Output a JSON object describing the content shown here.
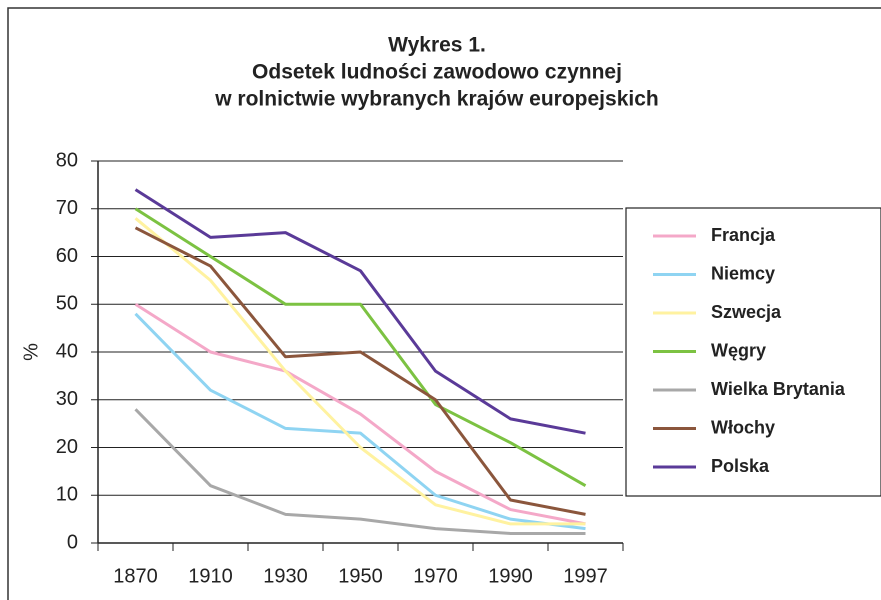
{
  "chart_data": {
    "type": "line",
    "title": [
      "Wykres 1.",
      "Odsetek ludności zawodowo czynnej",
      "w rolnictwie wybranych krajów europejskich"
    ],
    "y_label": "%",
    "categories": [
      "1870",
      "1910",
      "1930",
      "1950",
      "1970",
      "1990",
      "1997"
    ],
    "series": [
      {
        "name": "Francja",
        "color": "#f4a8c8",
        "values": [
          50,
          40,
          36,
          27,
          15,
          7,
          4
        ]
      },
      {
        "name": "Niemcy",
        "color": "#8fd4f2",
        "values": [
          48,
          32,
          24,
          23,
          10,
          5,
          3
        ]
      },
      {
        "name": "Szwecja",
        "color": "#fff2a0",
        "values": [
          68,
          55,
          36,
          20,
          8,
          4,
          4
        ]
      },
      {
        "name": "Węgry",
        "color": "#7cc242",
        "values": [
          70,
          60,
          50,
          50,
          29,
          21,
          12
        ]
      },
      {
        "name": "Wielka Brytania",
        "color": "#a8a8a8",
        "values": [
          28,
          12,
          6,
          5,
          3,
          2,
          2
        ]
      },
      {
        "name": "Włochy",
        "color": "#8b563c",
        "values": [
          66,
          58,
          39,
          40,
          30,
          9,
          6
        ]
      },
      {
        "name": "Polska",
        "color": "#5a3a98",
        "values": [
          74,
          64,
          65,
          57,
          36,
          26,
          23
        ]
      }
    ],
    "ylim": [
      0,
      80
    ],
    "yticks": [
      0,
      10,
      20,
      30,
      40,
      50,
      60,
      70,
      80
    ],
    "grid": true,
    "legend": "right"
  }
}
